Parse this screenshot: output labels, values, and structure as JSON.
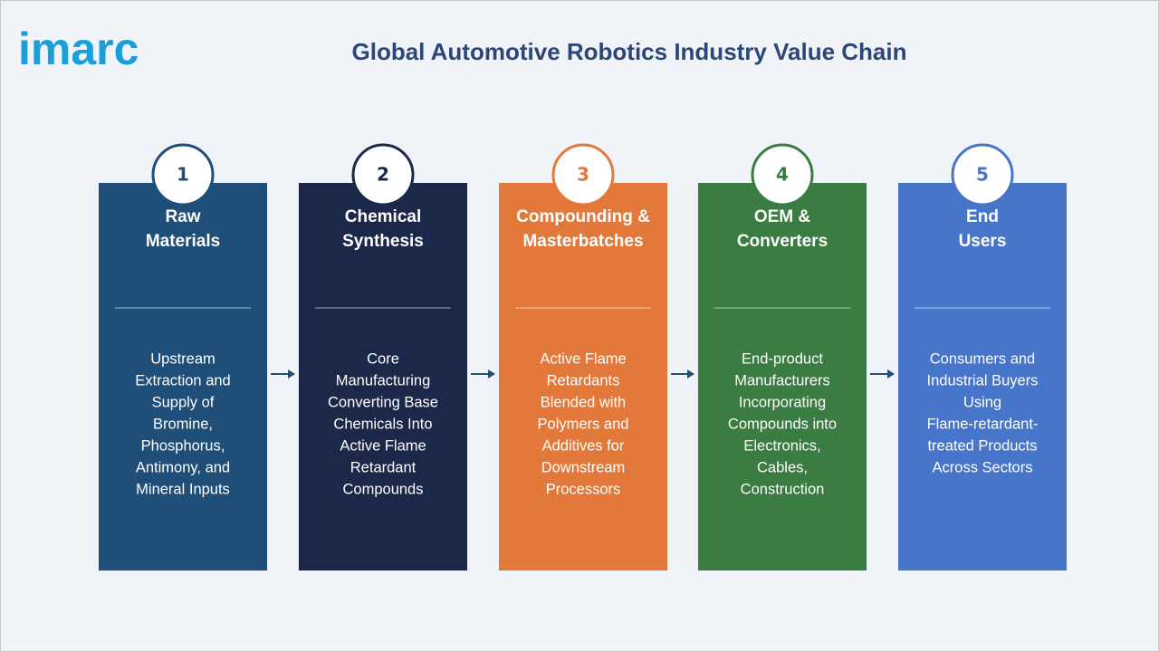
{
  "logo": "imarc",
  "title": "Global Automotive Robotics Industry Value Chain",
  "stages": [
    {
      "number": "1",
      "color": "#1f4e79",
      "title_lines": [
        "Raw",
        "Materials"
      ],
      "description_lines": [
        "Upstream",
        "Extraction and",
        "Supply of",
        "Bromine,",
        "Phosphorus,",
        "Antimony, and",
        "Mineral Inputs"
      ]
    },
    {
      "number": "2",
      "color": "#1c2849",
      "title_lines": [
        "Chemical",
        "Synthesis"
      ],
      "description_lines": [
        "Core",
        "Manufacturing",
        "Converting Base",
        "Chemicals Into",
        "Active Flame",
        "Retardant",
        "Compounds"
      ]
    },
    {
      "number": "3",
      "color": "#e2793a",
      "title_lines": [
        "Compounding &",
        "Masterbatches"
      ],
      "description_lines": [
        "Active Flame",
        "Retardants",
        "Blended with",
        "Polymers and",
        "Additives for",
        "Downstream",
        "Processors"
      ]
    },
    {
      "number": "4",
      "color": "#3a7c42",
      "title_lines": [
        "OEM &",
        "Converters"
      ],
      "description_lines": [
        "End-product",
        "Manufacturers",
        "Incorporating",
        "Compounds into",
        "Electronics,",
        "Cables,",
        "Construction"
      ]
    },
    {
      "number": "5",
      "color": "#4775c9",
      "title_lines": [
        "End",
        "Users"
      ],
      "description_lines": [
        "Consumers and",
        "Industrial Buyers",
        "Using",
        "Flame-retardant-",
        "treated Products",
        "Across Sectors"
      ]
    }
  ]
}
